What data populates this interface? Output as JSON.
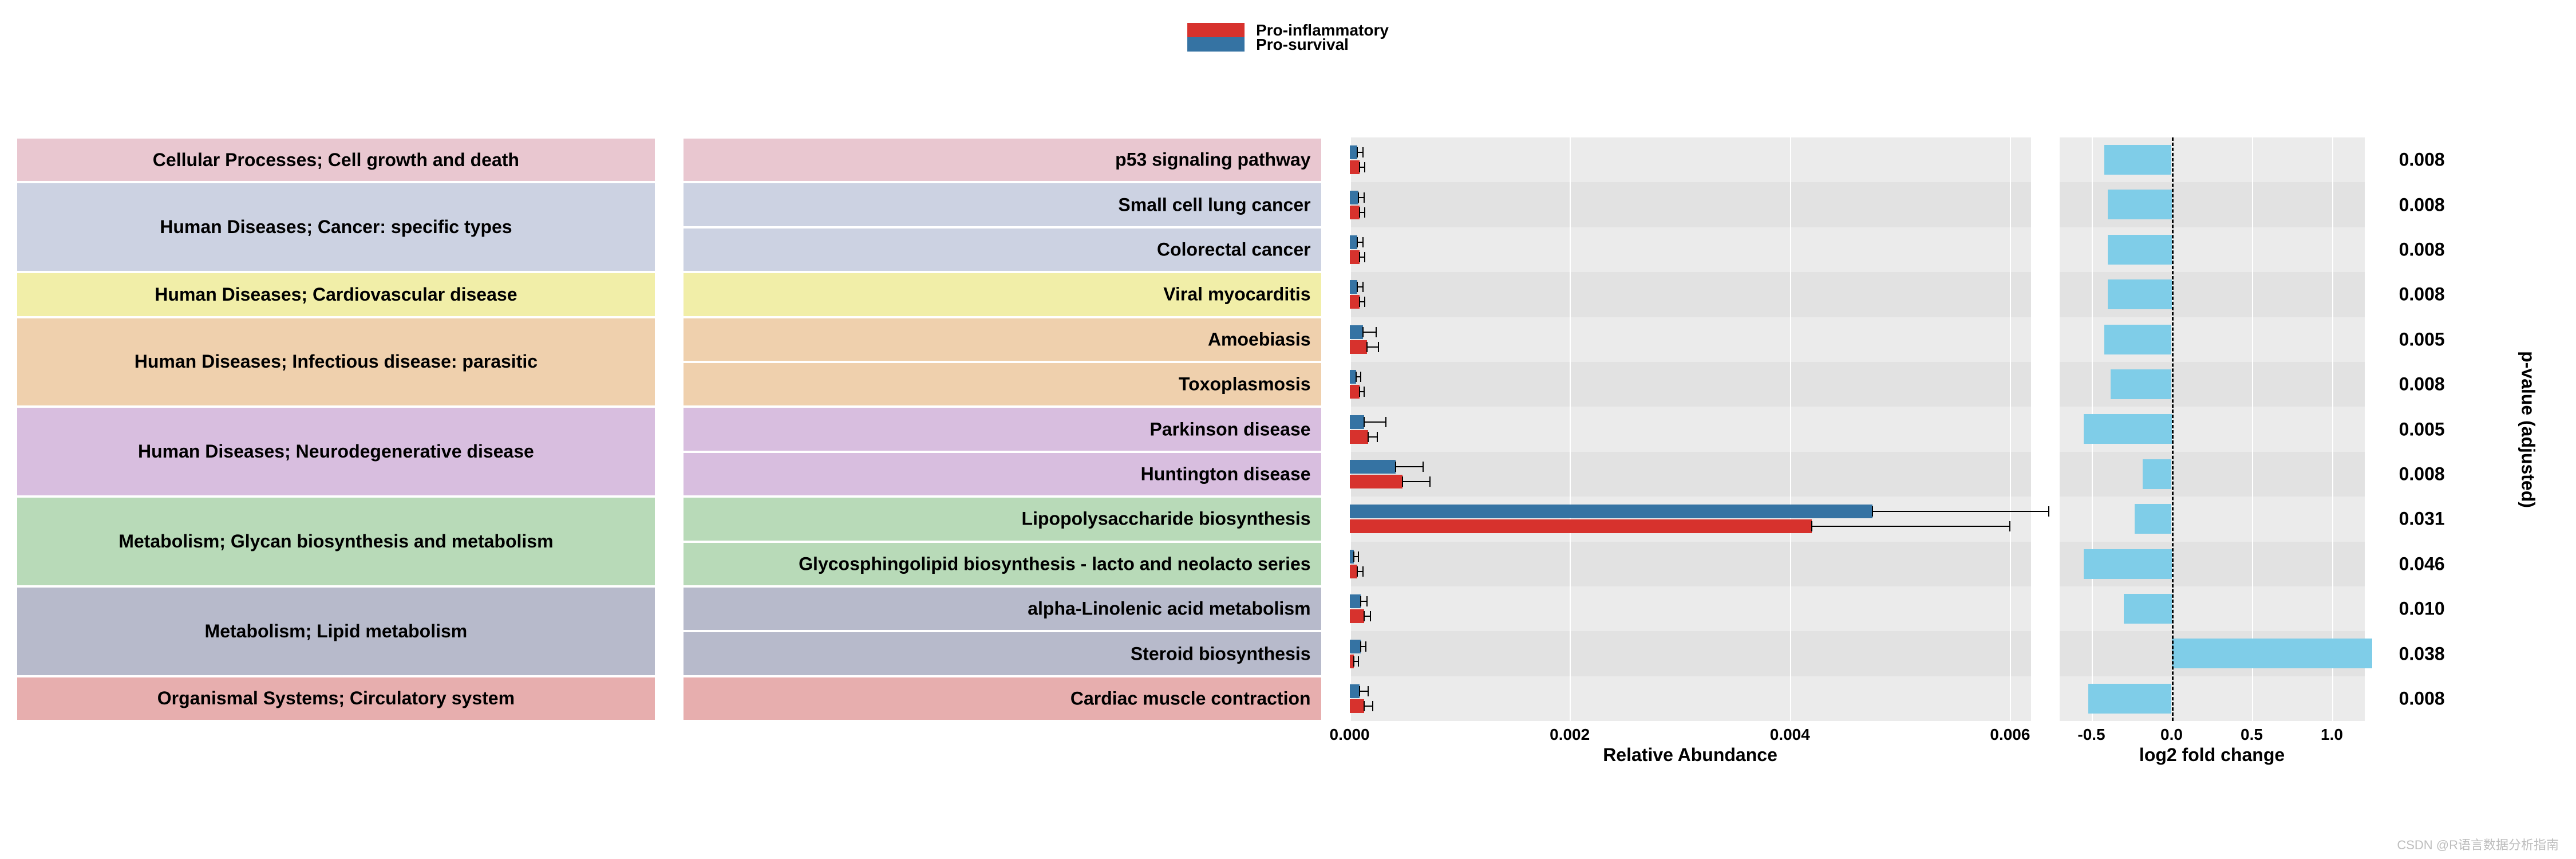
{
  "legend": {
    "items": [
      {
        "label": "Pro-inflammatory",
        "color": "#d7322d"
      },
      {
        "label": "Pro-survival",
        "color": "#3573a3"
      }
    ]
  },
  "layout": {
    "row_height": 78.4,
    "n_rows": 13,
    "chart_top": 240
  },
  "colors": {
    "panel_bg": "#ebebeb",
    "bar_pro_inflammatory": "#d7322d",
    "bar_pro_survival": "#3573a3",
    "foldchange_bar": "#7fcde8",
    "grid_line": "#ffffff",
    "zero_dashed": "#000000",
    "text": "#000000",
    "row_stripe_alt": "#d2d2d2"
  },
  "categories": [
    {
      "label": "Cellular Processes; Cell growth and death",
      "rows": [
        0
      ],
      "color": "#e9c7d0"
    },
    {
      "label": "Human Diseases; Cancer: specific types",
      "rows": [
        1,
        2
      ],
      "color": "#ccd2e2"
    },
    {
      "label": "Human Diseases; Cardiovascular disease",
      "rows": [
        3
      ],
      "color": "#f1eea8"
    },
    {
      "label": "Human Diseases; Infectious disease: parasitic",
      "rows": [
        4,
        5
      ],
      "color": "#efd0ad"
    },
    {
      "label": "Human Diseases; Neurodegenerative disease",
      "rows": [
        6,
        7
      ],
      "color": "#d8bedf"
    },
    {
      "label": "Metabolism; Glycan biosynthesis and metabolism",
      "rows": [
        8,
        9
      ],
      "color": "#b8dab8"
    },
    {
      "label": "Metabolism; Lipid metabolism",
      "rows": [
        10,
        11
      ],
      "color": "#b7bacb"
    },
    {
      "label": "Organismal Systems; Circulatory system",
      "rows": [
        12
      ],
      "color": "#e7aeae"
    }
  ],
  "pathways": [
    "p53 signaling pathway",
    "Small cell lung cancer",
    "Colorectal cancer",
    "Viral myocarditis",
    "Amoebiasis",
    "Toxoplasmosis",
    "Parkinson disease",
    "Huntington disease",
    "Lipopolysaccharide biosynthesis",
    "Glycosphingolipid biosynthesis - lacto and neolacto series",
    "alpha-Linolenic acid metabolism",
    "Steroid biosynthesis",
    "Cardiac muscle contraction"
  ],
  "abundance": {
    "title": "Relative Abundance",
    "xlim": [
      0,
      0.0065
    ],
    "ticks": [
      0.0,
      0.002,
      0.004,
      0.006
    ],
    "tick_labels": [
      "0.000",
      "0.002",
      "0.004",
      "0.006"
    ],
    "series": [
      {
        "name": "Pro-survival",
        "color": "#3573a3",
        "offset": -13
      },
      {
        "name": "Pro-inflammatory",
        "color": "#d7322d",
        "offset": 13
      }
    ],
    "data": [
      {
        "blue": 7e-05,
        "blue_err": 5e-05,
        "red": 9e-05,
        "red_err": 5e-05
      },
      {
        "blue": 8e-05,
        "blue_err": 5e-05,
        "red": 9e-05,
        "red_err": 5e-05
      },
      {
        "blue": 7e-05,
        "blue_err": 5e-05,
        "red": 9e-05,
        "red_err": 5e-05
      },
      {
        "blue": 7e-05,
        "blue_err": 5e-05,
        "red": 9e-05,
        "red_err": 5e-05
      },
      {
        "blue": 0.00012,
        "blue_err": 0.00012,
        "red": 0.00016,
        "red_err": 0.0001
      },
      {
        "blue": 6e-05,
        "blue_err": 4e-05,
        "red": 9e-05,
        "red_err": 4e-05
      },
      {
        "blue": 0.00013,
        "blue_err": 0.0002,
        "red": 0.00017,
        "red_err": 8e-05
      },
      {
        "blue": 0.00042,
        "blue_err": 0.00025,
        "red": 0.00048,
        "red_err": 0.00025
      },
      {
        "blue": 0.00475,
        "blue_err": 0.0016,
        "red": 0.0042,
        "red_err": 0.0018
      },
      {
        "blue": 4e-05,
        "blue_err": 4e-05,
        "red": 7e-05,
        "red_err": 5e-05
      },
      {
        "blue": 0.0001,
        "blue_err": 6e-05,
        "red": 0.00013,
        "red_err": 6e-05
      },
      {
        "blue": 0.0001,
        "blue_err": 5e-05,
        "red": 4e-05,
        "red_err": 4e-05
      },
      {
        "blue": 9e-05,
        "blue_err": 8e-05,
        "red": 0.00013,
        "red_err": 8e-05
      }
    ]
  },
  "foldchange": {
    "title": "log2 fold change",
    "xlim": [
      -0.7,
      1.3
    ],
    "ticks": [
      -0.5,
      0.0,
      0.5,
      1.0
    ],
    "tick_labels": [
      "-0.5",
      "0.0",
      "0.5",
      "1.0"
    ],
    "bar_color": "#7fcde8",
    "values": [
      -0.42,
      -0.4,
      -0.4,
      -0.4,
      -0.42,
      -0.38,
      -0.55,
      -0.18,
      -0.23,
      -0.55,
      -0.3,
      1.25,
      -0.52
    ]
  },
  "pvalue": {
    "title": "p-value (adjusted)",
    "values": [
      "0.008",
      "0.008",
      "0.008",
      "0.008",
      "0.005",
      "0.008",
      "0.005",
      "0.008",
      "0.031",
      "0.046",
      "0.010",
      "0.038",
      "0.008"
    ]
  },
  "watermark": "CSDN @R语言数据分析指南"
}
